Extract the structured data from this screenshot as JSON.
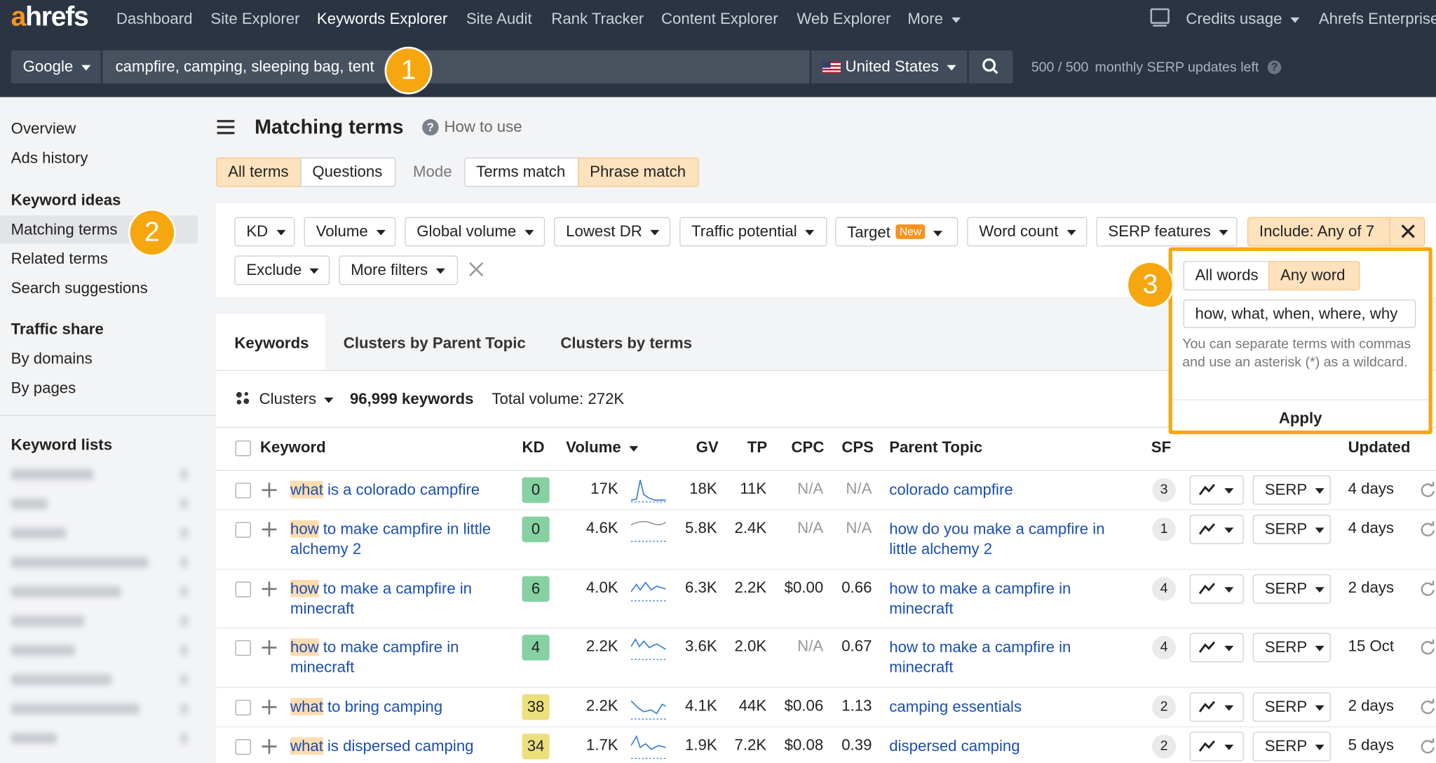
{
  "nav": {
    "logo_rest": "hrefs",
    "items": [
      "Dashboard",
      "Site Explorer",
      "Keywords Explorer",
      "Site Audit",
      "Rank Tracker",
      "Content Explorer",
      "Web Explorer",
      "More"
    ],
    "right": [
      "Credits usage",
      "Ahrefs Enterprise"
    ]
  },
  "search": {
    "engine": "Google",
    "query": "campfire, camping, sleeping bag, tent",
    "country": "United States",
    "quota": "500 / 500",
    "quota_label": "monthly SERP updates left"
  },
  "badges": [
    "1",
    "2",
    "3"
  ],
  "sidebar": {
    "top": [
      "Overview",
      "Ads history"
    ],
    "sections": [
      {
        "title": "Keyword ideas",
        "items": [
          "Matching terms",
          "Related terms",
          "Search suggestions"
        ]
      },
      {
        "title": "Traffic share",
        "items": [
          "By domains",
          "By pages"
        ]
      },
      {
        "title": "Keyword lists",
        "items": []
      }
    ]
  },
  "header": {
    "title": "Matching terms",
    "help": "How to use"
  },
  "mode": {
    "terms": [
      "All terms",
      "Questions"
    ],
    "label": "Mode",
    "modes": [
      "Terms match",
      "Phrase match"
    ]
  },
  "filters": {
    "items": [
      "KD",
      "Volume",
      "Global volume",
      "Lowest DR",
      "Traffic potential",
      "Target",
      "Word count",
      "SERP features",
      "Exclude",
      "More filters"
    ],
    "new_badge": "New",
    "include": "Include: Any of 7"
  },
  "popup": {
    "options": [
      "All words",
      "Any word"
    ],
    "input": "how, what, when, where, why",
    "hint": "You can separate terms with commas and use an asterisk (*) as a wildcard.",
    "apply": "Apply"
  },
  "result_tabs": [
    "Keywords",
    "Clusters by Parent Topic",
    "Clusters by terms"
  ],
  "summary": {
    "clusters": "Clusters",
    "count": "96,999 keywords",
    "total": "Total volume: 272K"
  },
  "table": {
    "columns": [
      "Keyword",
      "KD",
      "Volume",
      "GV",
      "TP",
      "CPC",
      "CPS",
      "Parent Topic",
      "SF",
      "Updated"
    ],
    "serp": "SERP",
    "rows": [
      {
        "highlight": "what",
        "keyword": "is a colorado campfire",
        "kd": 0,
        "kd_color": "#86d1a2",
        "volume": "17K",
        "gv": "18K",
        "tp": "11K",
        "cpc": "N/A",
        "cps": "N/A",
        "parent": "colorado campfire",
        "sf": 3,
        "updated": "4 days"
      },
      {
        "highlight": "how",
        "keyword": "to make campfire in little alchemy 2",
        "kd": 0,
        "kd_color": "#86d1a2",
        "volume": "4.6K",
        "gv": "5.8K",
        "tp": "2.4K",
        "cpc": "N/A",
        "cps": "N/A",
        "parent": "how do you make a campfire in little alchemy 2",
        "sf": 1,
        "updated": "4 days"
      },
      {
        "highlight": "how",
        "keyword": "to make a campfire in minecraft",
        "kd": 6,
        "kd_color": "#86d1a2",
        "volume": "4.0K",
        "gv": "6.3K",
        "tp": "2.2K",
        "cpc": "$0.00",
        "cps": "0.66",
        "parent": "how to make a campfire in minecraft",
        "sf": 4,
        "updated": "2 days"
      },
      {
        "highlight": "how",
        "keyword": "to make campfire in minecraft",
        "kd": 4,
        "kd_color": "#86d1a2",
        "volume": "2.2K",
        "gv": "3.6K",
        "tp": "2.0K",
        "cpc": "N/A",
        "cps": "0.67",
        "parent": "how to make a campfire in minecraft",
        "sf": 4,
        "updated": "15 Oct"
      },
      {
        "highlight": "what",
        "keyword": "to bring camping",
        "kd": 38,
        "kd_color": "#ece07c",
        "volume": "2.2K",
        "gv": "4.1K",
        "tp": "44K",
        "cpc": "$0.06",
        "cps": "1.13",
        "parent": "camping essentials",
        "sf": 2,
        "updated": "2 days"
      },
      {
        "highlight": "what",
        "keyword": "is dispersed camping",
        "kd": 34,
        "kd_color": "#ece07c",
        "volume": "1.7K",
        "gv": "1.9K",
        "tp": "7.2K",
        "cpc": "$0.08",
        "cps": "0.39",
        "parent": "dispersed camping",
        "sf": 2,
        "updated": "5 days"
      }
    ]
  }
}
